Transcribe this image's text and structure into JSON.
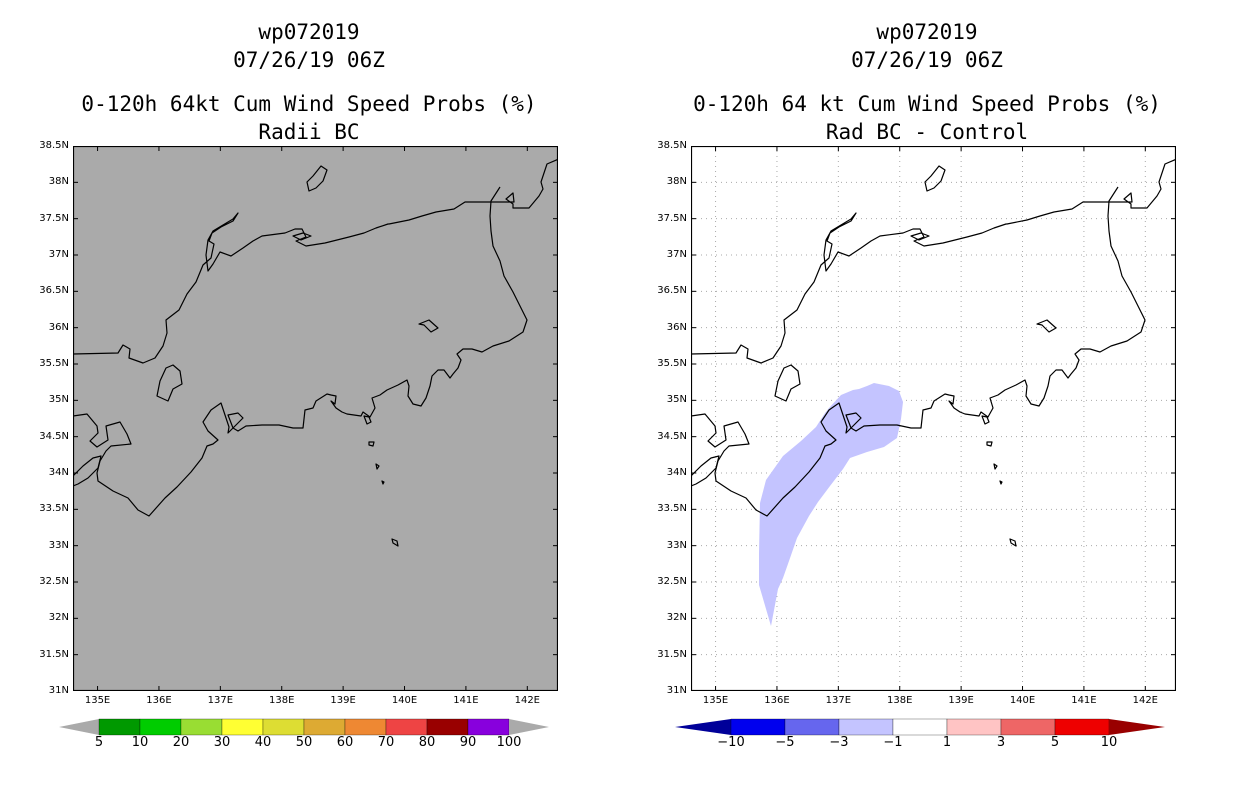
{
  "panels": [
    {
      "title_lines": [
        "wp072019",
        "07/26/19 06Z",
        "0-120h 64kt Cum Wind Speed Probs (%)",
        "Radii BC"
      ],
      "background": "#aaaaaa",
      "grid": false
    },
    {
      "title_lines": [
        "wp072019",
        "07/26/19 06Z",
        "0-120h 64 kt Cum Wind Speed Probs (%)",
        "Rad BC - Control"
      ],
      "background": "#ffffff",
      "grid": true,
      "shaded_region": {
        "range": "-3 to -1",
        "color": "#c4c4ff"
      }
    }
  ],
  "axes": {
    "lon_labels": [
      "135E",
      "136E",
      "137E",
      "138E",
      "139E",
      "140E",
      "141E",
      "142E"
    ],
    "lon_values": [
      135,
      136,
      137,
      138,
      139,
      140,
      141,
      142
    ],
    "lat_labels": [
      "38.5N",
      "38N",
      "37.5N",
      "37N",
      "36.5N",
      "36N",
      "35.5N",
      "35N",
      "34.5N",
      "34N",
      "33.5N",
      "33N",
      "32.5N",
      "32N",
      "31.5N",
      "31N"
    ],
    "lat_values": [
      38.5,
      38,
      37.5,
      37,
      36.5,
      36,
      35.5,
      35,
      34.5,
      34,
      33.5,
      33,
      32.5,
      32,
      31.5,
      31
    ],
    "lon_range": [
      134.6,
      142.5
    ],
    "lat_range": [
      31,
      38.5
    ]
  },
  "colorbars": [
    {
      "colors": [
        "#009900",
        "#00cc00",
        "#99dd33",
        "#ffff33",
        "#dddd33",
        "#ddaa33",
        "#ee8833",
        "#ee4444",
        "#990000",
        "#8800dd"
      ],
      "end_colors": [
        "#aaaaaa",
        "#aaaaaa"
      ],
      "labels": [
        "5",
        "10",
        "20",
        "30",
        "40",
        "50",
        "60",
        "70",
        "80",
        "90",
        "100"
      ]
    },
    {
      "colors": [
        "#0000ee",
        "#6666ee",
        "#c4c4ff",
        "#ffffff",
        "#ffc4c4",
        "#ee6666",
        "#ee0000"
      ],
      "end_colors": [
        "#000099",
        "#990000"
      ],
      "labels": [
        "−10",
        "−5",
        "−3",
        "−1",
        "1",
        "3",
        "5",
        "10"
      ]
    }
  ]
}
